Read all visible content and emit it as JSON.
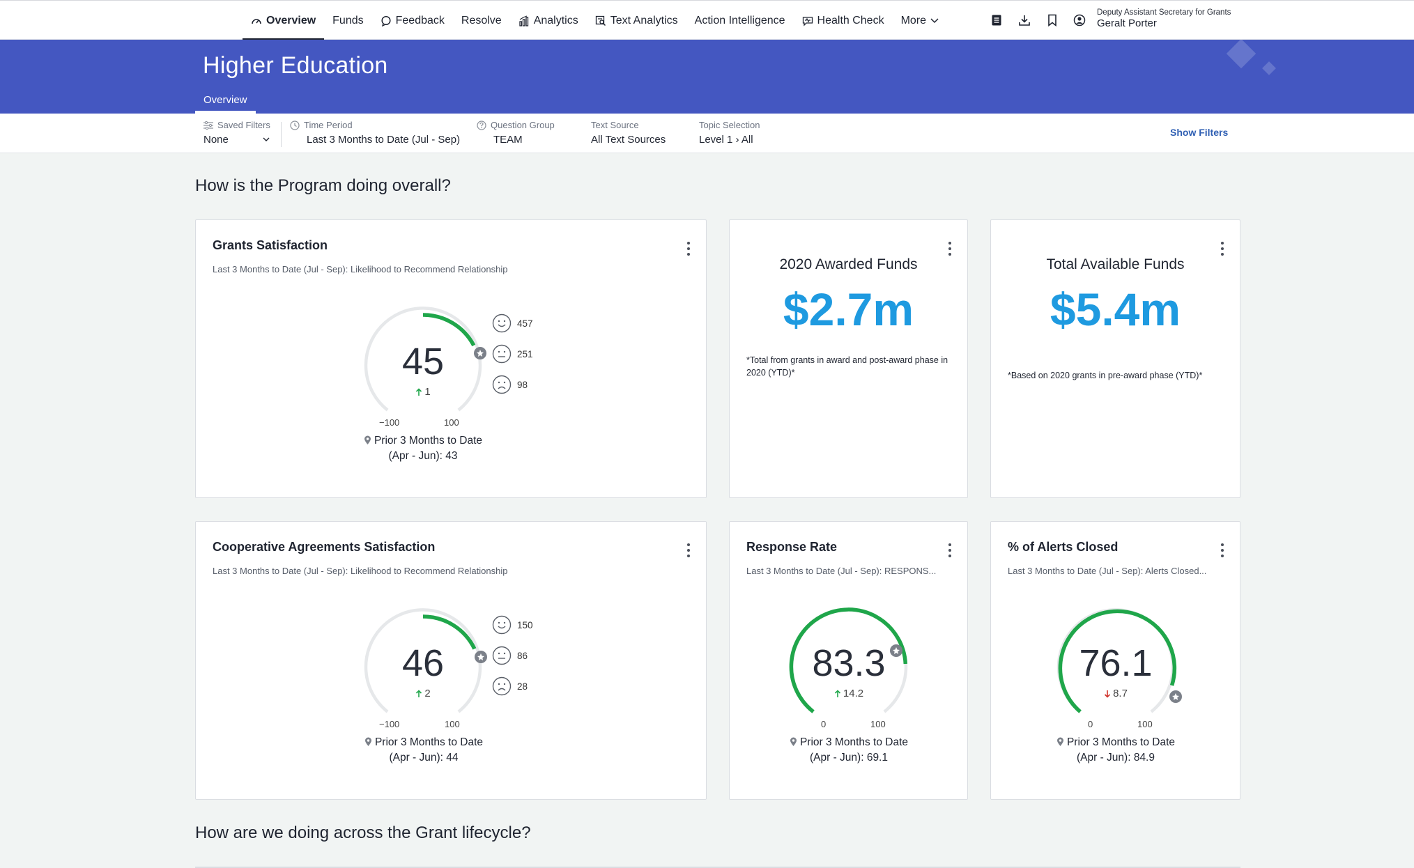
{
  "nav": {
    "items": [
      {
        "label": "Overview",
        "icon": "gauge-icon",
        "active": true
      },
      {
        "label": "Funds",
        "icon": ""
      },
      {
        "label": "Feedback",
        "icon": "chat-icon"
      },
      {
        "label": "Resolve",
        "icon": ""
      },
      {
        "label": "Analytics",
        "icon": "bar-chart-icon"
      },
      {
        "label": "Text Analytics",
        "icon": "text-search-icon"
      },
      {
        "label": "Action Intelligence",
        "icon": ""
      },
      {
        "label": "Health Check",
        "icon": "health-check-icon"
      },
      {
        "label": "More",
        "icon": "chevron-down-icon"
      }
    ],
    "user": {
      "role": "Deputy Assistant Secretary for Grants",
      "name": "Geralt Porter"
    }
  },
  "banner": {
    "title": "Higher Education",
    "tab": "Overview",
    "color": "#4457c1"
  },
  "filters": {
    "saved": {
      "label": "Saved Filters",
      "value": "None"
    },
    "time": {
      "label": "Time Period",
      "value": "Last 3 Months to Date (Jul - Sep)"
    },
    "question": {
      "label": "Question Group",
      "value": "TEAM"
    },
    "text_source": {
      "label": "Text Source",
      "value": "All Text Sources"
    },
    "topic": {
      "label": "Topic Selection",
      "value": "Level 1 › All"
    },
    "show_filters": "Show Filters"
  },
  "sections": {
    "overall": "How is the Program doing overall?",
    "lifecycle": "How are we doing across the Grant lifecycle?"
  },
  "cards": {
    "grants": {
      "title": "Grants Satisfaction",
      "subtitle": "Last 3 Months to Date (Jul - Sep): Likelihood to Recommend Relationship",
      "value": "45",
      "delta": "1",
      "delta_dir": "up",
      "min": "−100",
      "max": "100",
      "prior_line1": "Prior 3 Months to Date",
      "prior_line2": "(Apr - Jun): 43",
      "happy": "457",
      "neutral": "251",
      "sad": "98"
    },
    "awarded": {
      "title": "2020 Awarded Funds",
      "value": "$2.7m",
      "note": "*Total from grants in award and post-award phase in 2020 (YTD)*"
    },
    "available": {
      "title": "Total Available Funds",
      "value": "$5.4m",
      "note": "*Based on 2020 grants in pre-award phase (YTD)*"
    },
    "coop": {
      "title": "Cooperative Agreements Satisfaction",
      "subtitle": "Last 3 Months to Date (Jul - Sep): Likelihood to Recommend Relationship",
      "value": "46",
      "delta": "2",
      "delta_dir": "up",
      "min": "−100",
      "max": "100",
      "prior_line1": "Prior 3 Months to Date",
      "prior_line2": "(Apr - Jun): 44",
      "happy": "150",
      "neutral": "86",
      "sad": "28"
    },
    "response": {
      "title": "Response Rate",
      "subtitle": "Last 3 Months to Date (Jul - Sep): RESPONS...",
      "value": "83.3",
      "delta": "14.2",
      "delta_dir": "up",
      "min": "0",
      "max": "100",
      "prior_line1": "Prior 3 Months to Date",
      "prior_line2": "(Apr - Jun): 69.1"
    },
    "alerts": {
      "title": "% of Alerts Closed",
      "subtitle": "Last 3 Months to Date (Jul - Sep): Alerts Closed...",
      "value": "76.1",
      "delta": "8.7",
      "delta_dir": "down",
      "min": "0",
      "max": "100",
      "prior_line1": "Prior 3 Months to Date",
      "prior_line2": "(Apr - Jun): 84.9"
    }
  },
  "colors": {
    "gauge_active": "#1fa64a",
    "gauge_track": "#e6e8ea",
    "metric": "#1e9ae0",
    "up": "#1fa64a",
    "down": "#d0342c"
  }
}
